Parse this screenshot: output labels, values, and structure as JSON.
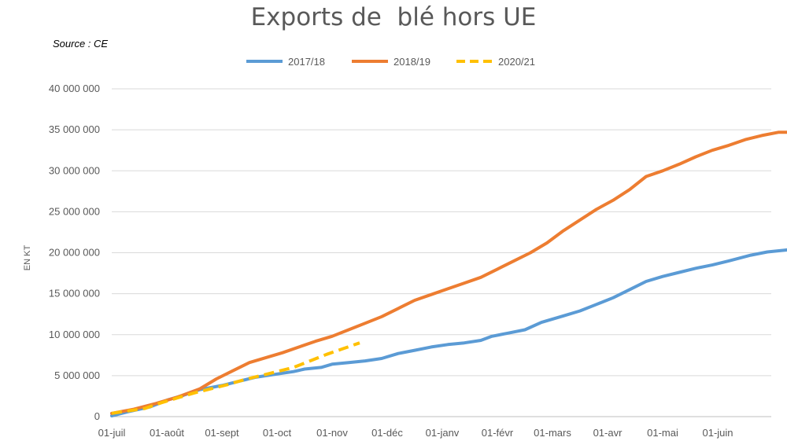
{
  "source_note": "Source : CE",
  "chart_data": {
    "type": "line",
    "title": "Exports de  blé hors UE",
    "ylabel": "EN KT",
    "xlabel": "",
    "ylim": [
      0,
      40000000
    ],
    "y_ticks": [
      0,
      5000000,
      10000000,
      15000000,
      20000000,
      25000000,
      30000000,
      35000000,
      40000000
    ],
    "y_tick_labels": [
      "0",
      "5 000 000",
      "10 000 000",
      "15 000 000",
      "20 000 000",
      "25 000 000",
      "30 000 000",
      "35 000 000",
      "40 000 000"
    ],
    "x_tick_labels": [
      "01-juil",
      "01-août",
      "01-sept",
      "01-oct",
      "01-nov",
      "01-déc",
      "01-janv",
      "01-févr",
      "01-mars",
      "01-avr",
      "01-mai",
      "01-juin"
    ],
    "grid": true,
    "legend_position": "top",
    "series": [
      {
        "name": "2017/18",
        "color": "#5B9BD5",
        "dash": false,
        "points": [
          [
            0,
            100000
          ],
          [
            0.3,
            600000
          ],
          [
            0.7,
            1200000
          ],
          [
            1.0,
            2000000
          ],
          [
            1.3,
            2600000
          ],
          [
            1.6,
            3300000
          ],
          [
            2.0,
            3800000
          ],
          [
            2.3,
            4300000
          ],
          [
            2.6,
            4800000
          ],
          [
            3.0,
            5200000
          ],
          [
            3.3,
            5500000
          ],
          [
            3.5,
            5800000
          ],
          [
            3.8,
            6000000
          ],
          [
            4.0,
            6400000
          ],
          [
            4.3,
            6600000
          ],
          [
            4.6,
            6800000
          ],
          [
            4.9,
            7100000
          ],
          [
            5.2,
            7700000
          ],
          [
            5.5,
            8100000
          ],
          [
            5.8,
            8500000
          ],
          [
            6.1,
            8800000
          ],
          [
            6.4,
            9000000
          ],
          [
            6.7,
            9300000
          ],
          [
            6.9,
            9800000
          ],
          [
            7.2,
            10200000
          ],
          [
            7.5,
            10600000
          ],
          [
            7.8,
            11500000
          ],
          [
            8.2,
            12300000
          ],
          [
            8.5,
            12900000
          ],
          [
            8.8,
            13700000
          ],
          [
            9.1,
            14500000
          ],
          [
            9.4,
            15500000
          ],
          [
            9.7,
            16500000
          ],
          [
            10.0,
            17100000
          ],
          [
            10.3,
            17600000
          ],
          [
            10.6,
            18100000
          ],
          [
            10.9,
            18500000
          ],
          [
            11.2,
            19000000
          ],
          [
            11.6,
            19700000
          ],
          [
            11.9,
            20100000
          ],
          [
            12.2,
            20300000
          ],
          [
            12.6,
            20600000
          ]
        ]
      },
      {
        "name": "2018/19",
        "color": "#ED7D31",
        "dash": false,
        "points": [
          [
            0,
            400000
          ],
          [
            0.4,
            900000
          ],
          [
            0.8,
            1600000
          ],
          [
            1.2,
            2400000
          ],
          [
            1.6,
            3400000
          ],
          [
            1.9,
            4600000
          ],
          [
            2.2,
            5600000
          ],
          [
            2.5,
            6600000
          ],
          [
            2.8,
            7200000
          ],
          [
            3.1,
            7800000
          ],
          [
            3.4,
            8500000
          ],
          [
            3.7,
            9200000
          ],
          [
            4.0,
            9800000
          ],
          [
            4.3,
            10600000
          ],
          [
            4.6,
            11400000
          ],
          [
            4.9,
            12200000
          ],
          [
            5.2,
            13200000
          ],
          [
            5.5,
            14200000
          ],
          [
            5.8,
            14900000
          ],
          [
            6.1,
            15600000
          ],
          [
            6.4,
            16300000
          ],
          [
            6.7,
            17000000
          ],
          [
            7.0,
            18000000
          ],
          [
            7.3,
            19000000
          ],
          [
            7.6,
            20000000
          ],
          [
            7.9,
            21200000
          ],
          [
            8.2,
            22700000
          ],
          [
            8.5,
            24000000
          ],
          [
            8.8,
            25300000
          ],
          [
            9.1,
            26400000
          ],
          [
            9.4,
            27700000
          ],
          [
            9.7,
            29300000
          ],
          [
            10.0,
            30000000
          ],
          [
            10.3,
            30800000
          ],
          [
            10.6,
            31700000
          ],
          [
            10.9,
            32500000
          ],
          [
            11.2,
            33100000
          ],
          [
            11.5,
            33800000
          ],
          [
            11.8,
            34300000
          ],
          [
            12.1,
            34700000
          ],
          [
            12.5,
            34700000
          ]
        ]
      },
      {
        "name": "2020/21",
        "color": "#FFC000",
        "dash": true,
        "points": [
          [
            0,
            400000
          ],
          [
            0.3,
            700000
          ],
          [
            0.6,
            1000000
          ],
          [
            0.9,
            1700000
          ],
          [
            1.2,
            2300000
          ],
          [
            1.5,
            2900000
          ],
          [
            1.8,
            3400000
          ],
          [
            2.1,
            3900000
          ],
          [
            2.4,
            4500000
          ],
          [
            2.7,
            5000000
          ],
          [
            3.0,
            5500000
          ],
          [
            3.3,
            6000000
          ],
          [
            3.6,
            6800000
          ],
          [
            3.9,
            7600000
          ],
          [
            4.2,
            8300000
          ],
          [
            4.5,
            9000000
          ]
        ]
      }
    ]
  }
}
